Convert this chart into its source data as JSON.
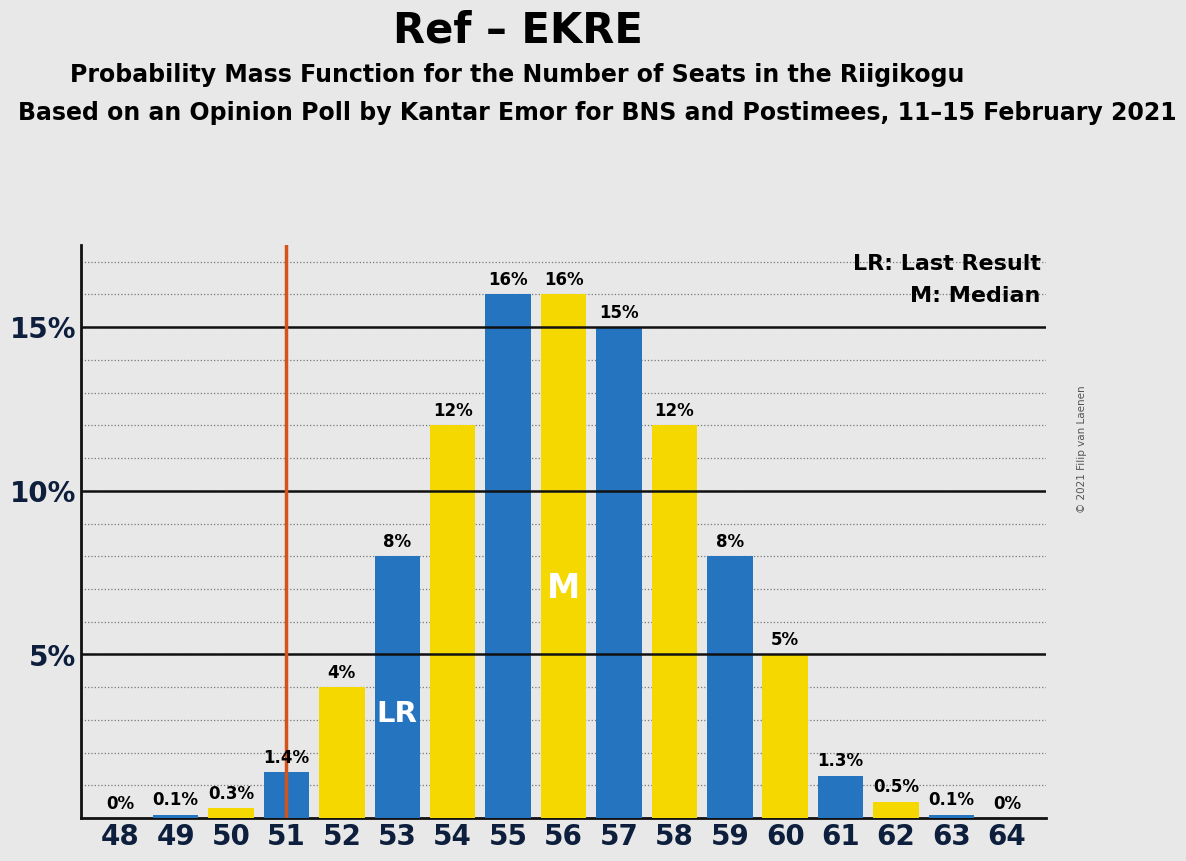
{
  "title": "Ref – EKRE",
  "subtitle1": "Probability Mass Function for the Number of Seats in the Riigikogu",
  "subtitle2": "Based on an Opinion Poll by Kantar Emor for BNS and Postimees, 11–15 February 2021",
  "copyright": "© 2021 Filip van Laenen",
  "seats": [
    48,
    49,
    50,
    51,
    52,
    53,
    54,
    55,
    56,
    57,
    58,
    59,
    60,
    61,
    62,
    63,
    64
  ],
  "values": [
    0.0,
    0.1,
    0.3,
    1.4,
    4.0,
    8.0,
    12.0,
    16.0,
    16.0,
    15.0,
    12.0,
    8.0,
    5.0,
    1.3,
    0.5,
    0.1,
    0.0
  ],
  "labels": [
    "0%",
    "0.1%",
    "0.3%",
    "1.4%",
    "4%",
    "8%",
    "12%",
    "16%",
    "16%",
    "15%",
    "12%",
    "8%",
    "5%",
    "1.3%",
    "0.5%",
    "0.1%",
    "0%"
  ],
  "show_labels": [
    true,
    true,
    true,
    true,
    true,
    true,
    true,
    true,
    true,
    true,
    true,
    true,
    true,
    true,
    true,
    true,
    true
  ],
  "bar_colors": [
    "#2474c0",
    "#2474c0",
    "#f5d800",
    "#2474c0",
    "#f5d800",
    "#2474c0",
    "#f5d800",
    "#2474c0",
    "#f5d800",
    "#2474c0",
    "#f5d800",
    "#2474c0",
    "#f5d800",
    "#2474c0",
    "#f5d800",
    "#2474c0",
    "#2474c0"
  ],
  "lr_seat": 51,
  "lr_color": "#d4531a",
  "median_seat": 56,
  "lr_label_seat": 53,
  "median_label_seat": 56,
  "lr_label": "LR",
  "median_label": "M",
  "lr_legend": "LR: Last Result",
  "median_legend": "M: Median",
  "ylim": [
    0,
    17.5
  ],
  "background_color": "#e8e8e8",
  "title_fontsize": 30,
  "subtitle1_fontsize": 17,
  "subtitle2_fontsize": 17,
  "label_fontsize": 12,
  "tick_fontsize": 20,
  "legend_fontsize": 16,
  "ytick_color": "#0d1f3c",
  "tick_color": "#0d1f3c"
}
